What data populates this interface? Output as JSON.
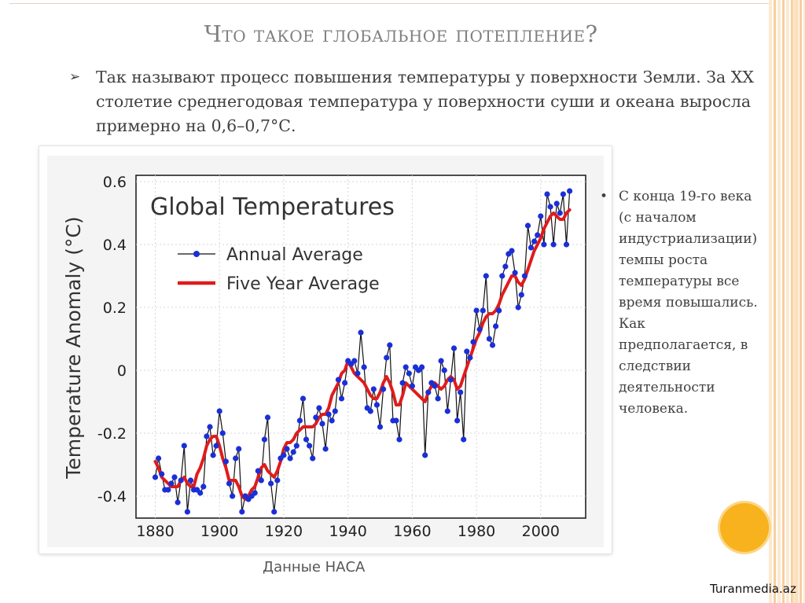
{
  "slide": {
    "title": "Что такое глобальное потепление?",
    "bullet_arrow": "➢",
    "bullet_text": "Так называют процесс повышения температуры у поверхности Земли. За XX столетие среднегодовая температура у поверхности суши и океана выросла примерно на 0,6–0,7°С.",
    "side_bullet": "•",
    "side_text": "С конца 19-го века (с началом индустриализации) темпы роста температуры все время повышались. Как предполагается, в следствии деятельности человека.",
    "caption": "Данные НАСА",
    "watermark": "Turanmedia.az"
  },
  "colors": {
    "annual": "#1a2fd6",
    "five_year": "#e01b1b",
    "title_gray": "#7f7f7f",
    "accent_orange": "#f8b21d"
  },
  "chart_data": {
    "type": "line",
    "title": "Global Temperatures",
    "ylabel": "Temperature Anomaly (°C)",
    "xlabel": "",
    "xlim": [
      1874,
      2014
    ],
    "ylim": [
      -0.47,
      0.62
    ],
    "xticks": [
      1880,
      1900,
      1920,
      1940,
      1960,
      1980,
      2000
    ],
    "yticks": [
      -0.4,
      -0.2,
      0,
      0.2,
      0.4,
      0.6
    ],
    "ytick_labels": [
      "-0.4",
      "-0.2",
      "0",
      "0.2",
      "0.4",
      "0.6"
    ],
    "grid": true,
    "legend": "top-left",
    "x": [
      1880,
      1881,
      1882,
      1883,
      1884,
      1885,
      1886,
      1887,
      1888,
      1889,
      1890,
      1891,
      1892,
      1893,
      1894,
      1895,
      1896,
      1897,
      1898,
      1899,
      1900,
      1901,
      1902,
      1903,
      1904,
      1905,
      1906,
      1907,
      1908,
      1909,
      1910,
      1911,
      1912,
      1913,
      1914,
      1915,
      1916,
      1917,
      1918,
      1919,
      1920,
      1921,
      1922,
      1923,
      1924,
      1925,
      1926,
      1927,
      1928,
      1929,
      1930,
      1931,
      1932,
      1933,
      1934,
      1935,
      1936,
      1937,
      1938,
      1939,
      1940,
      1941,
      1942,
      1943,
      1944,
      1945,
      1946,
      1947,
      1948,
      1949,
      1950,
      1951,
      1952,
      1953,
      1954,
      1955,
      1956,
      1957,
      1958,
      1959,
      1960,
      1961,
      1962,
      1963,
      1964,
      1965,
      1966,
      1967,
      1968,
      1969,
      1970,
      1971,
      1972,
      1973,
      1974,
      1975,
      1976,
      1977,
      1978,
      1979,
      1980,
      1981,
      1982,
      1983,
      1984,
      1985,
      1986,
      1987,
      1988,
      1989,
      1990,
      1991,
      1992,
      1993,
      1994,
      1995,
      1996,
      1997,
      1998,
      1999,
      2000,
      2001,
      2002,
      2003,
      2004,
      2005,
      2006,
      2007,
      2008,
      2009
    ],
    "series": [
      {
        "name": "Annual Average",
        "style": "line-with-markers",
        "values": [
          -0.34,
          -0.28,
          -0.33,
          -0.38,
          -0.38,
          -0.36,
          -0.34,
          -0.42,
          -0.35,
          -0.24,
          -0.45,
          -0.35,
          -0.38,
          -0.38,
          -0.39,
          -0.37,
          -0.21,
          -0.18,
          -0.27,
          -0.24,
          -0.13,
          -0.2,
          -0.29,
          -0.36,
          -0.4,
          -0.28,
          -0.25,
          -0.45,
          -0.4,
          -0.41,
          -0.4,
          -0.39,
          -0.32,
          -0.35,
          -0.22,
          -0.15,
          -0.36,
          -0.45,
          -0.35,
          -0.28,
          -0.27,
          -0.25,
          -0.28,
          -0.26,
          -0.24,
          -0.16,
          -0.09,
          -0.22,
          -0.24,
          -0.28,
          -0.15,
          -0.12,
          -0.17,
          -0.25,
          -0.14,
          -0.16,
          -0.13,
          -0.03,
          -0.09,
          -0.04,
          0.03,
          0.02,
          0.03,
          -0.01,
          0.12,
          0.01,
          -0.12,
          -0.13,
          -0.06,
          -0.11,
          -0.18,
          -0.06,
          0.04,
          0.08,
          -0.16,
          -0.16,
          -0.22,
          -0.04,
          0.01,
          -0.01,
          -0.05,
          0.01,
          0.0,
          0.01,
          -0.27,
          -0.07,
          -0.04,
          -0.05,
          -0.09,
          0.03,
          0.0,
          -0.13,
          -0.03,
          0.07,
          -0.16,
          -0.07,
          -0.22,
          0.06,
          0.04,
          0.09,
          0.19,
          0.13,
          0.19,
          0.3,
          0.1,
          0.08,
          0.14,
          0.19,
          0.3,
          0.33,
          0.37,
          0.38,
          0.31,
          0.2,
          0.24,
          0.3,
          0.46,
          0.39,
          0.41,
          0.43,
          0.49,
          0.4,
          0.56,
          0.52,
          0.4,
          0.53,
          0.5,
          0.56,
          0.4,
          0.57
        ]
      },
      {
        "name": "Five Year Average",
        "style": "thick-smooth-line",
        "values": [
          -0.29,
          -0.31,
          -0.34,
          -0.35,
          -0.36,
          -0.37,
          -0.37,
          -0.37,
          -0.35,
          -0.34,
          -0.36,
          -0.37,
          -0.37,
          -0.33,
          -0.31,
          -0.28,
          -0.24,
          -0.22,
          -0.21,
          -0.21,
          -0.24,
          -0.28,
          -0.31,
          -0.35,
          -0.35,
          -0.35,
          -0.37,
          -0.4,
          -0.41,
          -0.4,
          -0.38,
          -0.37,
          -0.34,
          -0.31,
          -0.3,
          -0.32,
          -0.33,
          -0.34,
          -0.32,
          -0.29,
          -0.25,
          -0.23,
          -0.23,
          -0.22,
          -0.2,
          -0.19,
          -0.18,
          -0.18,
          -0.18,
          -0.18,
          -0.17,
          -0.15,
          -0.14,
          -0.14,
          -0.12,
          -0.08,
          -0.06,
          -0.04,
          -0.01,
          0.0,
          0.03,
          0.01,
          -0.01,
          -0.02,
          -0.03,
          -0.04,
          -0.06,
          -0.08,
          -0.09,
          -0.09,
          -0.07,
          -0.04,
          -0.02,
          -0.04,
          -0.07,
          -0.11,
          -0.11,
          -0.08,
          -0.04,
          -0.05,
          -0.06,
          -0.07,
          -0.08,
          -0.09,
          -0.1,
          -0.07,
          -0.05,
          -0.04,
          -0.05,
          -0.06,
          -0.05,
          -0.03,
          -0.02,
          -0.03,
          -0.06,
          -0.05,
          -0.02,
          0.01,
          0.04,
          0.07,
          0.1,
          0.12,
          0.15,
          0.17,
          0.18,
          0.18,
          0.19,
          0.21,
          0.24,
          0.26,
          0.28,
          0.3,
          0.3,
          0.28,
          0.27,
          0.29,
          0.32,
          0.35,
          0.38,
          0.4,
          0.42,
          0.45,
          0.47,
          0.49,
          0.5,
          0.49,
          0.48,
          0.48,
          0.5,
          0.51
        ]
      }
    ]
  }
}
